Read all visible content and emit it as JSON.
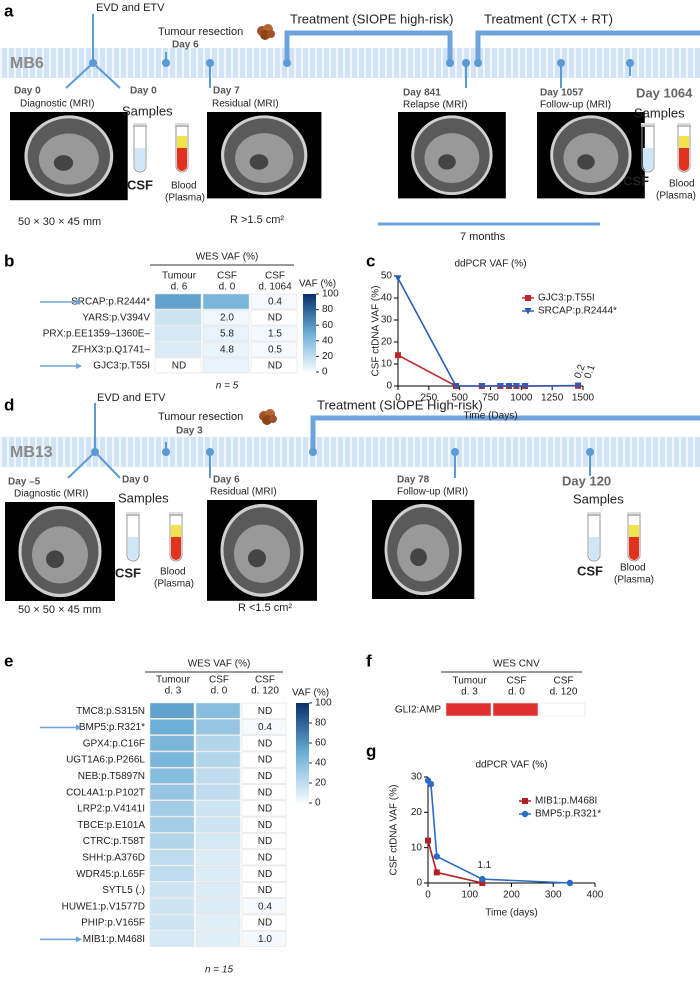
{
  "panel_labels": [
    "a",
    "b",
    "c",
    "d",
    "e",
    "f",
    "g"
  ],
  "timelines": [
    {
      "patient": "MB6",
      "events": [
        "EVD and ETV",
        "Tumour resection",
        "Day 6",
        "Treatment (SIOPE high-risk)",
        "Treatment (CTX + RT)"
      ],
      "mri": [
        {
          "day": "Day 0",
          "label": "Diagnostic (MRI)",
          "note": "50 × 30 × 45 mm"
        },
        {
          "day": "Day 7",
          "label": "Residual (MRI)",
          "note": "R >1.5 cm²"
        },
        {
          "day": "Day 841",
          "label": "Relapse (MRI)"
        },
        {
          "day": "Day 1057",
          "label": "Follow-up (MRI)"
        }
      ],
      "samples": [
        {
          "day": "Day 0",
          "title": "Samples",
          "csf": "CSF",
          "blood": "Blood",
          "plasma": "(Plasma)"
        },
        {
          "day": "Day 1064",
          "title": "Samples",
          "csf": "CSF",
          "blood": "Blood",
          "plasma": "(Plasma)"
        }
      ],
      "interval": "7 months"
    },
    {
      "patient": "MB13",
      "events": [
        "EVD and ETV",
        "Tumour resection",
        "Day 3",
        "Treatment (SIOPE High-risk)"
      ],
      "mri": [
        {
          "day": "Day –5",
          "label": "Diagnostic (MRI)",
          "note": "50 × 50 × 45 mm"
        },
        {
          "day": "Day 6",
          "label": "Residual (MRI)",
          "note": "R <1.5 cm²"
        },
        {
          "day": "Day 78",
          "label": "Follow-up (MRI)"
        }
      ],
      "samples": [
        {
          "day": "Day 0",
          "title": "Samples",
          "csf": "CSF",
          "blood": "Blood",
          "plasma": "(Plasma)"
        },
        {
          "day": "Day 120",
          "title": "Samples",
          "csf": "CSF",
          "blood": "Blood",
          "plasma": "(Plasma)"
        }
      ]
    }
  ],
  "chart_data": [
    {
      "type": "heatmap",
      "title": "WES VAF (%)",
      "columns": [
        {
          "name": "Tumour",
          "day": "d. 6"
        },
        {
          "name": "CSF",
          "day": "d. 0"
        },
        {
          "name": "CSF",
          "day": "d. 1064"
        }
      ],
      "rows": [
        "SRCAP:p.R2444*",
        "YARS:p.V394V",
        "PRX:p.EE1359–1360E–",
        "ZFHX3:p.Q1741–",
        "GJC3:p.T55I"
      ],
      "marked": [
        true,
        false,
        false,
        false,
        true
      ],
      "values": [
        [
          55,
          45,
          0.4
        ],
        [
          15,
          2.0,
          null
        ],
        [
          12,
          5.8,
          1.5
        ],
        [
          10,
          4.8,
          0.5
        ],
        [
          null,
          5,
          null
        ]
      ],
      "value_labels": [
        [
          null,
          null,
          "0.4"
        ],
        [
          null,
          "2.0",
          "ND"
        ],
        [
          null,
          "5.8",
          "1.5"
        ],
        [
          null,
          "4.8",
          "0.5"
        ],
        [
          "ND",
          null,
          "ND"
        ]
      ],
      "colorbar_title": "VAF (%)",
      "clim": [
        0,
        100
      ],
      "cticks": [
        0,
        20,
        40,
        60,
        80,
        100
      ],
      "note": "n = 5"
    },
    {
      "type": "line",
      "title": "ddPCR VAF (%)",
      "ylabel": "CSF ctDNA VAF (%)",
      "xlabel": "Time (Days)",
      "xlim": [
        0,
        1500
      ],
      "xticks": [
        0,
        250,
        500,
        750,
        1000,
        1250,
        1500
      ],
      "ylim": [
        0,
        50
      ],
      "yticks": [
        0,
        10,
        20,
        30,
        40,
        50
      ],
      "series": [
        {
          "name": "GJC3:p.T55I",
          "color": "#c0282d",
          "marker": "square",
          "x": [
            0,
            470,
            680,
            830,
            900,
            960,
            1030,
            1460
          ],
          "values": [
            14,
            0,
            0,
            0,
            0,
            0,
            0,
            0.1
          ],
          "value_labels": [
            null,
            null,
            null,
            null,
            null,
            null,
            null,
            "0.1"
          ]
        },
        {
          "name": "SRCAP:p.R2444*",
          "color": "#2a5cb8",
          "marker": "triangle-down",
          "x": [
            0,
            470,
            680,
            830,
            900,
            960,
            1030,
            1460
          ],
          "values": [
            49,
            0,
            0,
            0,
            0,
            0,
            0,
            0.2
          ],
          "value_labels": [
            null,
            null,
            null,
            null,
            null,
            null,
            null,
            "0.2"
          ]
        }
      ]
    },
    {
      "type": "heatmap",
      "title": "WES VAF (%)",
      "columns": [
        {
          "name": "Tumour",
          "day": "d. 3"
        },
        {
          "name": "CSF",
          "day": "d. 0"
        },
        {
          "name": "CSF",
          "day": "d. 120"
        }
      ],
      "rows": [
        "TMC8:p.S315N",
        "BMP5:p.R321*",
        "GPX4:p.C16F",
        "UGT1A6:p.P266L",
        "NEB:p.T5897N",
        "COL4A1:p.P102T",
        "LRP2:p.V4141I",
        "TBCE:p.E101A",
        "CTRC:p.T58T",
        "SHH:p.A376D",
        "WDR45:p.L65F",
        "SYTL5 (.)",
        "HUWE1:p.V1577D",
        "PHIP:p.V165F",
        "MIB1:p.M468I"
      ],
      "marked": [
        false,
        true,
        false,
        false,
        false,
        false,
        false,
        false,
        false,
        false,
        false,
        false,
        false,
        false,
        true
      ],
      "values": [
        [
          55,
          40,
          null
        ],
        [
          50,
          35,
          0.4
        ],
        [
          45,
          25,
          null
        ],
        [
          45,
          25,
          null
        ],
        [
          40,
          20,
          null
        ],
        [
          35,
          20,
          null
        ],
        [
          30,
          15,
          null
        ],
        [
          30,
          15,
          null
        ],
        [
          25,
          12,
          null
        ],
        [
          20,
          10,
          null
        ],
        [
          20,
          10,
          null
        ],
        [
          15,
          10,
          null
        ],
        [
          15,
          10,
          0.4
        ],
        [
          15,
          8,
          null
        ],
        [
          12,
          8,
          1.0
        ]
      ],
      "value_labels": [
        [
          null,
          null,
          "ND"
        ],
        [
          null,
          null,
          "0.4"
        ],
        [
          null,
          null,
          "ND"
        ],
        [
          null,
          null,
          "ND"
        ],
        [
          null,
          null,
          "ND"
        ],
        [
          null,
          null,
          "ND"
        ],
        [
          null,
          null,
          "ND"
        ],
        [
          null,
          null,
          "ND"
        ],
        [
          null,
          null,
          "ND"
        ],
        [
          null,
          null,
          "ND"
        ],
        [
          null,
          null,
          "ND"
        ],
        [
          null,
          null,
          "ND"
        ],
        [
          null,
          null,
          "0.4"
        ],
        [
          null,
          null,
          "ND"
        ],
        [
          null,
          null,
          "1.0"
        ]
      ],
      "colorbar_title": "VAF (%)",
      "clim": [
        0,
        100
      ],
      "cticks": [
        0,
        20,
        40,
        60,
        80,
        100
      ],
      "note": "n = 15"
    },
    {
      "type": "heatmap",
      "title": "WES CNV",
      "columns": [
        {
          "name": "Tumour",
          "day": "d. 3"
        },
        {
          "name": "CSF",
          "day": "d. 0"
        },
        {
          "name": "CSF",
          "day": "d. 120"
        }
      ],
      "rows": [
        "GLI2:AMP"
      ],
      "cell_colors": [
        [
          "#e03030",
          "#e03030",
          "#ffffff"
        ]
      ]
    },
    {
      "type": "line",
      "title": "ddPCR VAF (%)",
      "ylabel": "CSF ctDNA VAF (%)",
      "xlabel": "Time (days)",
      "xlim": [
        0,
        400
      ],
      "xticks": [
        0,
        100,
        200,
        300,
        400
      ],
      "ylim": [
        0,
        30
      ],
      "yticks": [
        0,
        10,
        20,
        30
      ],
      "series": [
        {
          "name": "MIB1:p.M468I",
          "color": "#b22024",
          "marker": "square",
          "x": [
            0,
            21,
            130
          ],
          "values": [
            12,
            3,
            0
          ]
        },
        {
          "name": "BMP5:p.R321*",
          "color": "#2a6cc4",
          "marker": "circle",
          "x": [
            0,
            7,
            21,
            130,
            340
          ],
          "values": [
            29,
            28,
            7.5,
            1.1,
            0
          ],
          "value_labels": [
            null,
            null,
            null,
            "1.1",
            null
          ]
        }
      ]
    }
  ]
}
